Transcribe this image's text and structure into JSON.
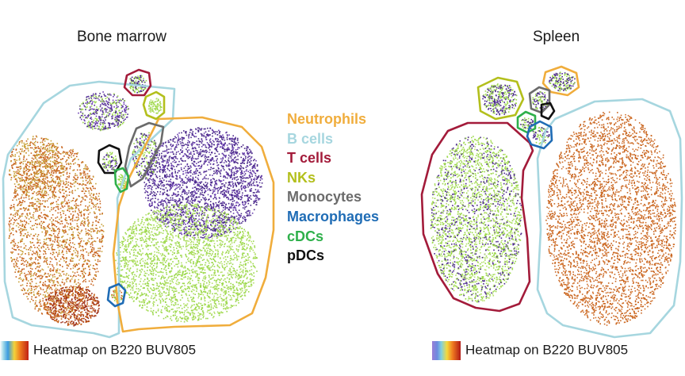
{
  "panels": {
    "left_title": "Bone marrow",
    "right_title": "Spleen"
  },
  "legend": [
    {
      "label": "Neutrophils",
      "color": "#f0ad3c"
    },
    {
      "label": "B cells",
      "color": "#a6d6df"
    },
    {
      "label": "T cells",
      "color": "#a31b3a"
    },
    {
      "label": "NKs",
      "color": "#b3bf1c"
    },
    {
      "label": "Monocytes",
      "color": "#6b6b6b"
    },
    {
      "label": "Macrophages",
      "color": "#1f6cb5"
    },
    {
      "label": "cDCs",
      "color": "#2fb04b"
    },
    {
      "label": "pDCs",
      "color": "#111111"
    }
  ],
  "heatmap": {
    "left_label": "Heatmap on B220 BUV805",
    "right_label": "Heatmap on B220 BUV805"
  },
  "colors": {
    "purple": "#4b2a8a",
    "green": "#9bd84a",
    "orange": "#c8641e",
    "darkred": "#9c2a14",
    "gold": "#c9a23a"
  }
}
